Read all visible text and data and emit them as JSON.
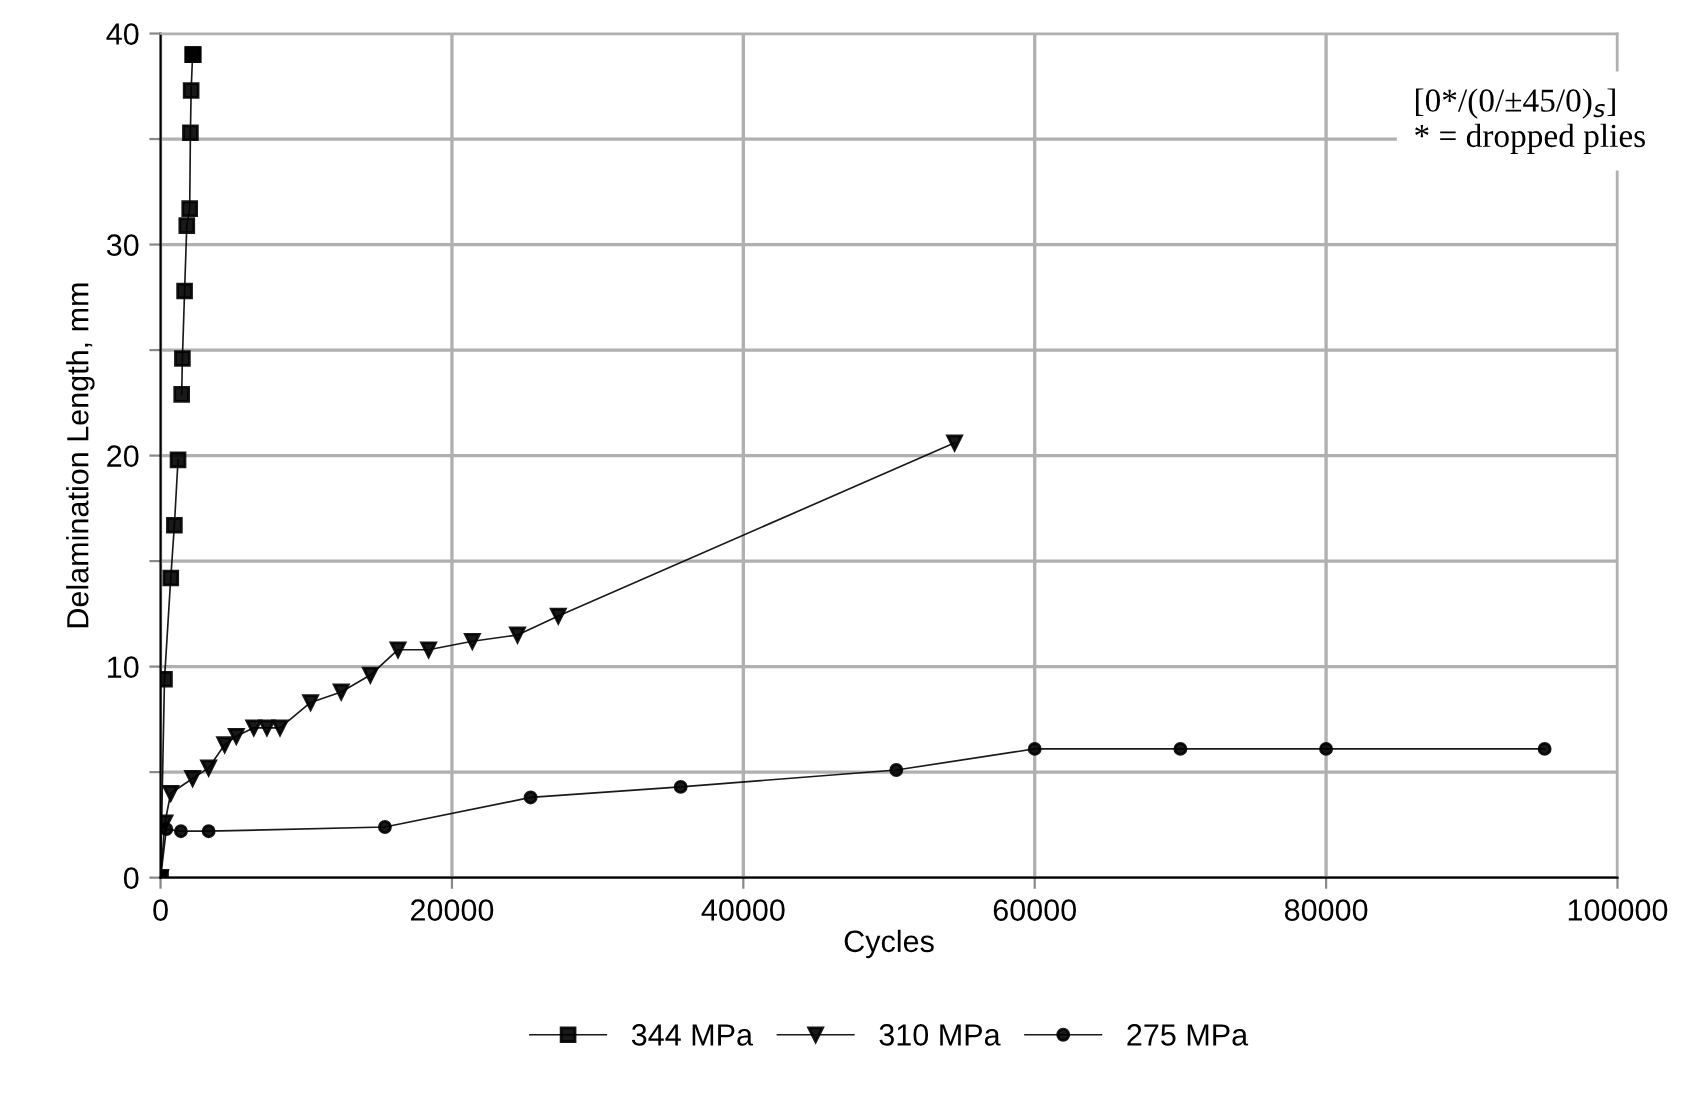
{
  "chart_data": {
    "type": "line",
    "xlabel": "Cycles",
    "ylabel": "Delamination Length, mm",
    "xlim": [
      0,
      100000
    ],
    "xticks": [
      0,
      20000,
      40000,
      60000,
      80000,
      100000
    ],
    "ylim": [
      0,
      40
    ],
    "yticks": [
      0,
      {
        "value": 5,
        "label": null
      },
      10,
      {
        "value": 15,
        "label": null
      },
      20,
      {
        "value": 25,
        "label": null
      },
      30,
      {
        "value": 35,
        "label": null
      },
      40
    ],
    "grid": true,
    "legend": "bottom",
    "line_style": "solid",
    "annotations": [
      "[0*/(0/±45/0)$_{s}$]\n* = dropped plies"
    ],
    "series": [
      {
        "name": "344 MPa",
        "color": "#000000",
        "marker": "square",
        "x": [
          0,
          270,
          700,
          950,
          1200,
          1350,
          1450,
          1500,
          1650,
          1800,
          2000,
          2050,
          2100,
          2200,
          2250
        ],
        "values": [
          0,
          9.4,
          14.2,
          16.7,
          19.8,
          null,
          22.9,
          24.6,
          27.8,
          30.9,
          31.7,
          35.3,
          37.3,
          39.0,
          39.0
        ]
      },
      {
        "name": "310 MPa",
        "color": "#000000",
        "marker": "triangle",
        "x": [
          0,
          300,
          700,
          2200,
          3300,
          4400,
          5200,
          6400,
          7300,
          8200,
          10300,
          12400,
          14400,
          16300,
          18400,
          21400,
          24500,
          27300,
          54500
        ],
        "values": [
          0,
          2.6,
          4.0,
          4.7,
          5.2,
          6.3,
          6.7,
          7.1,
          7.1,
          7.1,
          8.3,
          8.8,
          9.6,
          10.8,
          10.8,
          11.2,
          11.5,
          12.4,
          20.6
        ]
      },
      {
        "name": "275 MPa",
        "color": "#000000",
        "marker": "circle",
        "x": [
          0,
          400,
          1400,
          3300,
          15400,
          25400,
          35700,
          50500,
          60000,
          70000,
          80000,
          95000
        ],
        "values": [
          0,
          2.3,
          2.2,
          2.2,
          2.4,
          3.8,
          4.3,
          5.1,
          6.1,
          6.1,
          6.1,
          6.1
        ]
      }
    ]
  }
}
